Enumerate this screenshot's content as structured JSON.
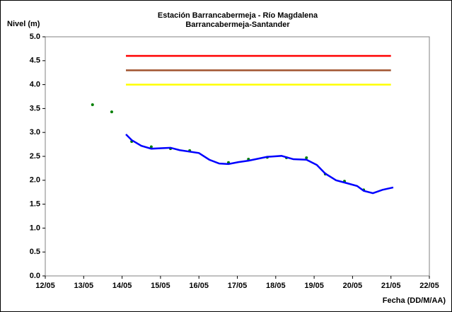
{
  "chart_data": {
    "type": "line",
    "title": [
      "Estación Barrancabermeja - Río Magdalena",
      "Barrancabermeja-Santander"
    ],
    "ylabel": "Nivel (m)",
    "xlabel": "Fecha (DD/M/AA)",
    "xlim": [
      12,
      22
    ],
    "xticks": [
      {
        "value": 12,
        "label": "12/05"
      },
      {
        "value": 13,
        "label": "13/05"
      },
      {
        "value": 14,
        "label": "14/05"
      },
      {
        "value": 15,
        "label": "15/05"
      },
      {
        "value": 16,
        "label": "16/05"
      },
      {
        "value": 17,
        "label": "17/05"
      },
      {
        "value": 18,
        "label": "18/05"
      },
      {
        "value": 19,
        "label": "19/05"
      },
      {
        "value": 20,
        "label": "20/05"
      },
      {
        "value": 21,
        "label": "21/05"
      },
      {
        "value": 22,
        "label": "22/05"
      }
    ],
    "ylim": [
      0,
      5
    ],
    "yticks": [
      {
        "value": 0,
        "label": "0.0"
      },
      {
        "value": 0.5,
        "label": "0.5"
      },
      {
        "value": 1,
        "label": "1.0"
      },
      {
        "value": 1.5,
        "label": "1.5"
      },
      {
        "value": 2,
        "label": "2.0"
      },
      {
        "value": 2.5,
        "label": "2.5"
      },
      {
        "value": 3,
        "label": "3.0"
      },
      {
        "value": 3.5,
        "label": "3.5"
      },
      {
        "value": 4,
        "label": "4.0"
      },
      {
        "value": 4.5,
        "label": "4.5"
      },
      {
        "value": 5,
        "label": "5.0"
      }
    ],
    "grid": false,
    "series": [
      {
        "color": "#ff0000",
        "x": [
          14.1,
          21.0
        ],
        "values": [
          4.6,
          4.6
        ]
      },
      {
        "color": "#a0522d",
        "x": [
          14.1,
          21.0
        ],
        "values": [
          4.3,
          4.3
        ]
      },
      {
        "color": "#ffff00",
        "x": [
          14.1,
          21.0
        ],
        "values": [
          4.0,
          4.0
        ]
      },
      {
        "type": "scatter",
        "color": "#008000",
        "x": [
          13.23,
          13.73,
          14.25,
          14.76,
          15.26,
          15.76,
          16.77,
          17.29,
          17.78,
          18.28,
          18.8,
          19.29,
          19.79,
          20.29
        ],
        "values": [
          3.58,
          3.43,
          2.81,
          2.7,
          2.66,
          2.62,
          2.37,
          2.44,
          2.48,
          2.47,
          2.47,
          2.13,
          1.98,
          1.8
        ]
      },
      {
        "color": "#0000ff",
        "x": [
          14.1,
          14.25,
          14.5,
          14.76,
          15.26,
          15.5,
          16.0,
          16.27,
          16.53,
          16.77,
          17.03,
          17.29,
          17.78,
          18.15,
          18.46,
          18.8,
          19.07,
          19.29,
          19.57,
          19.85,
          20.12,
          20.29,
          20.53,
          20.78,
          21.06
        ],
        "values": [
          2.96,
          2.84,
          2.72,
          2.66,
          2.68,
          2.63,
          2.57,
          2.43,
          2.35,
          2.34,
          2.38,
          2.41,
          2.49,
          2.51,
          2.44,
          2.43,
          2.32,
          2.14,
          2.0,
          1.94,
          1.88,
          1.78,
          1.73,
          1.8,
          1.85
        ]
      }
    ]
  }
}
